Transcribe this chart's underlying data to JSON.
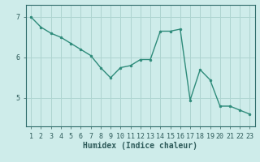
{
  "x": [
    1,
    2,
    3,
    4,
    5,
    6,
    7,
    8,
    9,
    10,
    11,
    12,
    13,
    14,
    15,
    16,
    17,
    18,
    19,
    20,
    21,
    22,
    23
  ],
  "y": [
    7.0,
    6.75,
    6.6,
    6.5,
    6.35,
    6.2,
    6.05,
    5.75,
    5.5,
    5.75,
    5.8,
    5.95,
    5.95,
    6.65,
    6.65,
    6.7,
    4.95,
    5.7,
    5.45,
    4.8,
    4.8,
    4.7,
    4.6
  ],
  "line_color": "#2e8b7a",
  "marker": "o",
  "marker_size": 2.0,
  "bg_color": "#ceecea",
  "grid_color": "#aed4d0",
  "axis_color": "#2e6b6a",
  "tick_color": "#2e5b5a",
  "xlabel": "Humidex (Indice chaleur)",
  "xlabel_fontsize": 7,
  "tick_fontsize": 6,
  "ylim": [
    4.3,
    7.3
  ],
  "yticks": [
    5,
    6,
    7
  ],
  "xlim": [
    0.5,
    23.5
  ],
  "linewidth": 1.0
}
